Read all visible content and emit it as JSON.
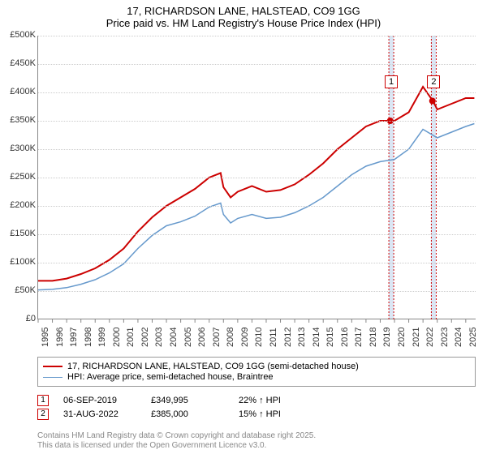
{
  "title": {
    "line1": "17, RICHARDSON LANE, HALSTEAD, CO9 1GG",
    "line2": "Price paid vs. HM Land Registry's House Price Index (HPI)"
  },
  "chart": {
    "type": "line",
    "background_color": "#ffffff",
    "grid_color": "#cccccc",
    "axis_color": "#888888",
    "xlim": [
      1995,
      2025.75
    ],
    "ylim": [
      0,
      500000
    ],
    "ytick_step": 50000,
    "yticks": [
      "£0",
      "£50K",
      "£100K",
      "£150K",
      "£200K",
      "£250K",
      "£300K",
      "£350K",
      "£400K",
      "£450K",
      "£500K"
    ],
    "xticks": [
      1995,
      1996,
      1997,
      1998,
      1999,
      2000,
      2001,
      2002,
      2003,
      2004,
      2005,
      2006,
      2007,
      2008,
      2009,
      2010,
      2011,
      2012,
      2013,
      2014,
      2015,
      2016,
      2017,
      2018,
      2019,
      2020,
      2021,
      2022,
      2023,
      2024,
      2025
    ],
    "series": [
      {
        "name": "price_paid",
        "label": "17, RICHARDSON LANE, HALSTEAD, CO9 1GG (semi-detached house)",
        "color": "#cc0000",
        "line_width": 2,
        "x": [
          1995,
          1996,
          1997,
          1998,
          1999,
          2000,
          2001,
          2002,
          2003,
          2004,
          2005,
          2006,
          2007,
          2007.8,
          2008,
          2008.5,
          2009,
          2010,
          2011,
          2012,
          2013,
          2014,
          2015,
          2016,
          2017,
          2018,
          2019,
          2019.7,
          2020,
          2021,
          2022,
          2022.7,
          2023,
          2024,
          2025,
          2025.6
        ],
        "y": [
          68000,
          68000,
          72000,
          80000,
          90000,
          105000,
          125000,
          155000,
          180000,
          200000,
          215000,
          230000,
          250000,
          258000,
          233000,
          215000,
          225000,
          235000,
          225000,
          228000,
          238000,
          255000,
          275000,
          300000,
          320000,
          340000,
          350000,
          349995,
          350000,
          365000,
          410000,
          385000,
          370000,
          380000,
          390000,
          390000
        ]
      },
      {
        "name": "hpi",
        "label": "HPI: Average price, semi-detached house, Braintree",
        "color": "#6699cc",
        "line_width": 1.5,
        "x": [
          1995,
          1996,
          1997,
          1998,
          1999,
          2000,
          2001,
          2002,
          2003,
          2004,
          2005,
          2006,
          2007,
          2007.8,
          2008,
          2008.5,
          2009,
          2010,
          2011,
          2012,
          2013,
          2014,
          2015,
          2016,
          2017,
          2018,
          2019,
          2020,
          2021,
          2022,
          2023,
          2024,
          2025,
          2025.6
        ],
        "y": [
          52000,
          53000,
          56000,
          62000,
          70000,
          82000,
          98000,
          125000,
          148000,
          165000,
          172000,
          182000,
          198000,
          205000,
          185000,
          170000,
          178000,
          185000,
          178000,
          180000,
          188000,
          200000,
          215000,
          235000,
          255000,
          270000,
          278000,
          282000,
          300000,
          335000,
          320000,
          330000,
          340000,
          345000
        ]
      }
    ],
    "callouts": [
      {
        "id": "1",
        "x": 2019.68,
        "band_width_years": 0.15,
        "box_y_value": 430000
      },
      {
        "id": "2",
        "x": 2022.66,
        "band_width_years": 0.15,
        "box_y_value": 430000
      }
    ],
    "markers": [
      {
        "x": 2019.7,
        "y": 349995,
        "color": "#cc0000",
        "size": 4
      },
      {
        "x": 2022.66,
        "y": 385000,
        "color": "#cc0000",
        "size": 4
      }
    ],
    "label_fontsize": 11,
    "title_fontsize": 13
  },
  "table": {
    "rows": [
      {
        "marker": "1",
        "date": "06-SEP-2019",
        "price": "£349,995",
        "note": "22% ↑ HPI"
      },
      {
        "marker": "2",
        "date": "31-AUG-2022",
        "price": "£385,000",
        "note": "15% ↑ HPI"
      }
    ]
  },
  "footer": {
    "line1": "Contains HM Land Registry data © Crown copyright and database right 2025.",
    "line2": "This data is licensed under the Open Government Licence v3.0."
  }
}
